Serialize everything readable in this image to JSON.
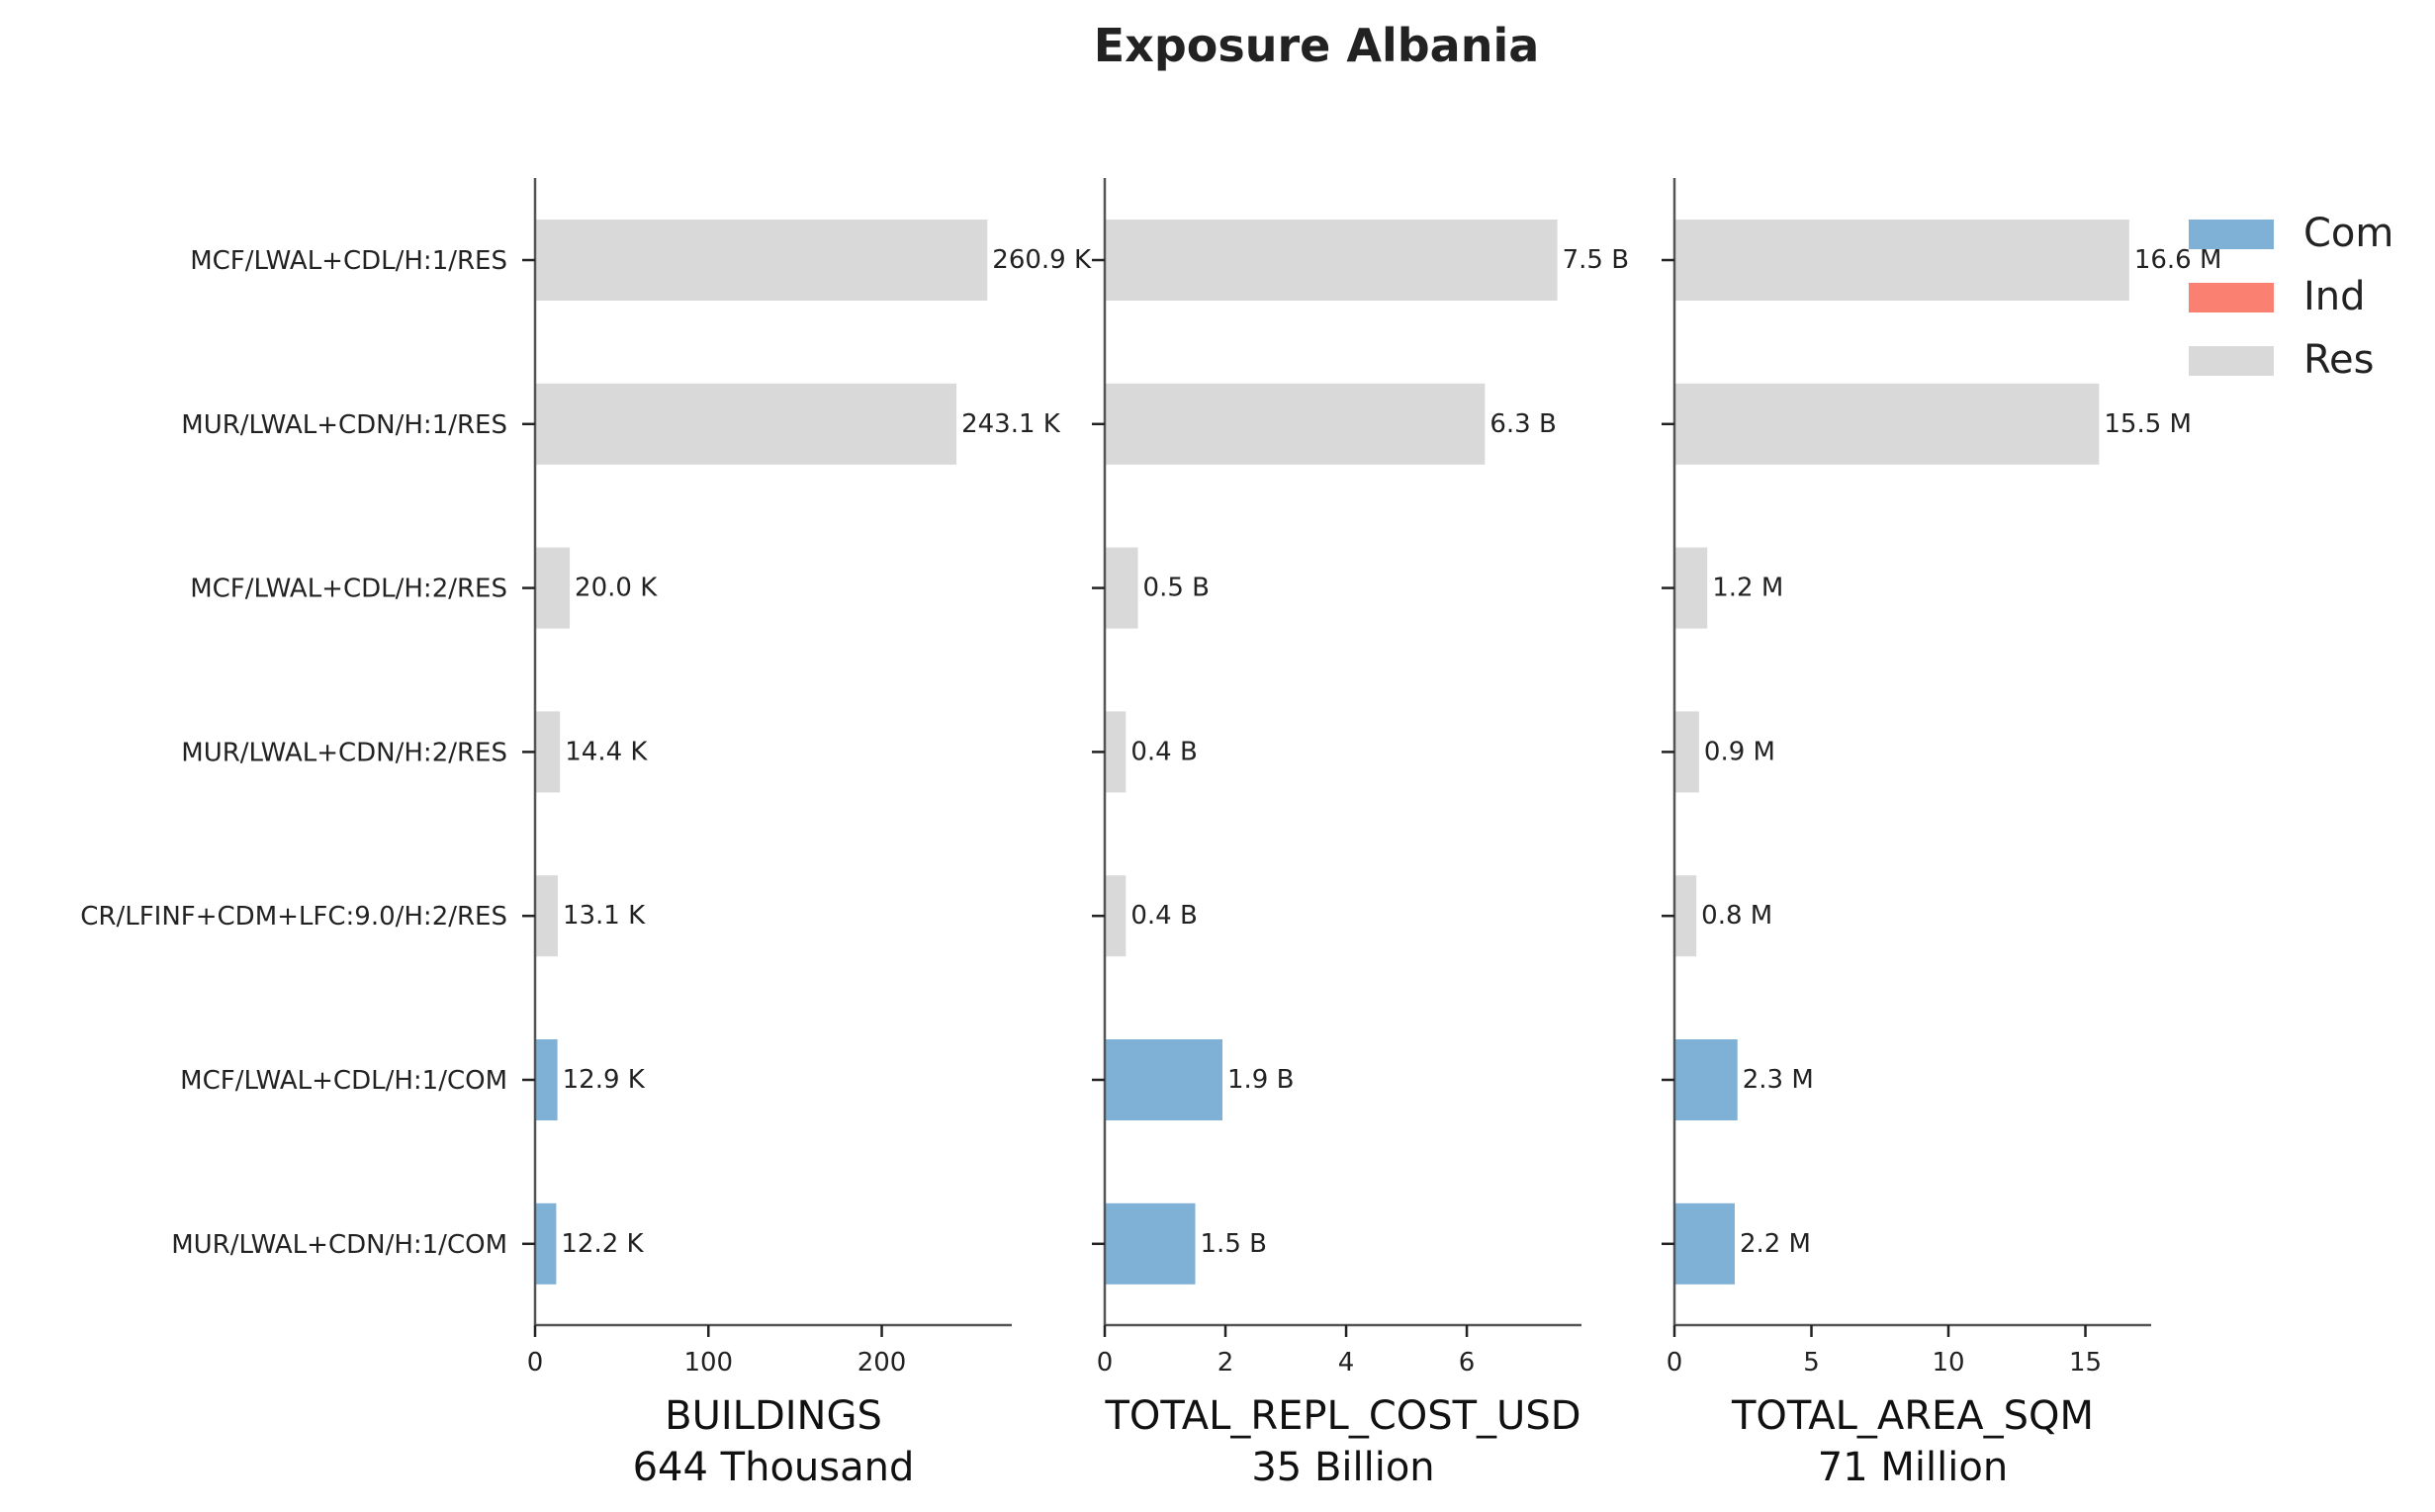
{
  "chart_data": {
    "type": "bar",
    "orientation": "horizontal",
    "title": "Exposure Albania",
    "categories": [
      "MCF/LWAL+CDL/H:1/RES",
      "MUR/LWAL+CDN/H:1/RES",
      "MCF/LWAL+CDL/H:2/RES",
      "MUR/LWAL+CDN/H:2/RES",
      "CR/LFINF+CDM+LFC:9.0/H:2/RES",
      "MCF/LWAL+CDL/H:1/COM",
      "MUR/LWAL+CDN/H:1/COM"
    ],
    "occupancy": [
      "Res",
      "Res",
      "Res",
      "Res",
      "Res",
      "Com",
      "Com"
    ],
    "legend": [
      {
        "name": "Com",
        "color": "#7fb0d5"
      },
      {
        "name": "Ind",
        "color": "#fa8072"
      },
      {
        "name": "Res",
        "color": "#d9d9d9"
      }
    ],
    "legend_position": "top-right",
    "panels": [
      {
        "xlabel": "BUILDINGS",
        "total": "644 Thousand",
        "xlim": [
          0,
          275
        ],
        "ticks": [
          0,
          100,
          200
        ],
        "values": [
          260.9,
          243.1,
          20.0,
          14.4,
          13.1,
          12.9,
          12.2
        ],
        "labels": [
          "260.9 K",
          "243.1 K",
          "20.0 K",
          "14.4 K",
          "13.1 K",
          "12.9 K",
          "12.2 K"
        ]
      },
      {
        "xlabel": "TOTAL_REPL_COST_USD",
        "total": "35 Billion",
        "xlim": [
          0,
          7.9
        ],
        "ticks": [
          0,
          2,
          4,
          6
        ],
        "values": [
          7.5,
          6.3,
          0.55,
          0.35,
          0.35,
          1.95,
          1.5
        ],
        "labels": [
          "7.5 B",
          "6.3 B",
          "0.5 B",
          "0.4 B",
          "0.4 B",
          "1.9 B",
          "1.5 B"
        ]
      },
      {
        "xlabel": "TOTAL_AREA_SQM",
        "total": "71 Million",
        "xlim": [
          0,
          17.4
        ],
        "ticks": [
          0,
          5,
          10,
          15
        ],
        "values": [
          16.6,
          15.5,
          1.2,
          0.9,
          0.8,
          2.3,
          2.2
        ],
        "labels": [
          "16.6 M",
          "15.5 M",
          "1.2 M",
          "0.9 M",
          "0.8 M",
          "2.3 M",
          "2.2 M"
        ]
      }
    ]
  }
}
